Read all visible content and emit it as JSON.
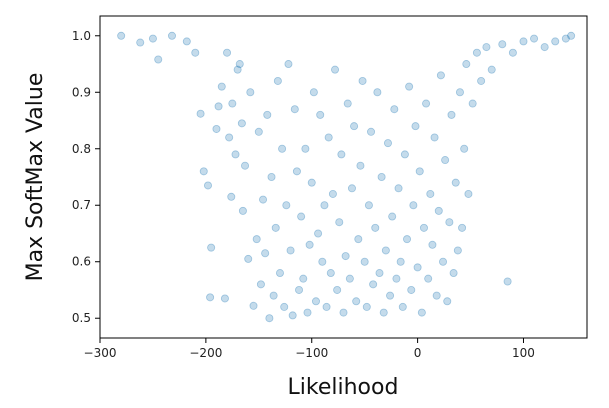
{
  "chart_data": {
    "type": "scatter",
    "title": "",
    "xlabel": "Likelihood",
    "ylabel": "Max SoftMax Value",
    "xlim": [
      -300,
      160
    ],
    "ylim": [
      0.465,
      1.035
    ],
    "xticks": [
      -300,
      -200,
      -100,
      0,
      100
    ],
    "xtick_labels": [
      "−300",
      "−200",
      "−100",
      "0",
      "100"
    ],
    "yticks": [
      0.5,
      0.6,
      0.7,
      0.8,
      0.9,
      1.0
    ],
    "ytick_labels": [
      "0.5",
      "0.6",
      "0.7",
      "0.8",
      "0.9",
      "1.0"
    ],
    "grid": false,
    "legend": "none",
    "marker_color": "#1f77b4",
    "marker_alpha": 0.12,
    "series": [
      {
        "points": [
          [
            -280,
            1.0
          ],
          [
            -262,
            0.988
          ],
          [
            -250,
            0.995
          ],
          [
            -245,
            0.958
          ],
          [
            -232,
            1.0
          ],
          [
            -218,
            0.99
          ],
          [
            -210,
            0.97
          ],
          [
            -205,
            0.862
          ],
          [
            -202,
            0.76
          ],
          [
            -198,
            0.735
          ],
          [
            -196,
            0.537
          ],
          [
            -195,
            0.625
          ],
          [
            -190,
            0.835
          ],
          [
            -188,
            0.875
          ],
          [
            -185,
            0.91
          ],
          [
            -182,
            0.535
          ],
          [
            -180,
            0.97
          ],
          [
            -178,
            0.82
          ],
          [
            -176,
            0.715
          ],
          [
            -175,
            0.88
          ],
          [
            -172,
            0.79
          ],
          [
            -170,
            0.94
          ],
          [
            -168,
            0.95
          ],
          [
            -166,
            0.845
          ],
          [
            -165,
            0.69
          ],
          [
            -163,
            0.77
          ],
          [
            -160,
            0.605
          ],
          [
            -158,
            0.9
          ],
          [
            -155,
            0.522
          ],
          [
            -152,
            0.64
          ],
          [
            -150,
            0.83
          ],
          [
            -148,
            0.56
          ],
          [
            -146,
            0.71
          ],
          [
            -144,
            0.615
          ],
          [
            -142,
            0.86
          ],
          [
            -140,
            0.5
          ],
          [
            -138,
            0.75
          ],
          [
            -136,
            0.54
          ],
          [
            -134,
            0.66
          ],
          [
            -132,
            0.92
          ],
          [
            -130,
            0.58
          ],
          [
            -128,
            0.8
          ],
          [
            -126,
            0.52
          ],
          [
            -124,
            0.7
          ],
          [
            -122,
            0.95
          ],
          [
            -120,
            0.62
          ],
          [
            -118,
            0.505
          ],
          [
            -116,
            0.87
          ],
          [
            -114,
            0.76
          ],
          [
            -112,
            0.55
          ],
          [
            -110,
            0.68
          ],
          [
            -108,
            0.57
          ],
          [
            -106,
            0.8
          ],
          [
            -104,
            0.51
          ],
          [
            -102,
            0.63
          ],
          [
            -100,
            0.74
          ],
          [
            -98,
            0.9
          ],
          [
            -96,
            0.53
          ],
          [
            -94,
            0.65
          ],
          [
            -92,
            0.86
          ],
          [
            -90,
            0.6
          ],
          [
            -88,
            0.7
          ],
          [
            -86,
            0.52
          ],
          [
            -84,
            0.82
          ],
          [
            -82,
            0.58
          ],
          [
            -80,
            0.72
          ],
          [
            -78,
            0.94
          ],
          [
            -76,
            0.55
          ],
          [
            -74,
            0.67
          ],
          [
            -72,
            0.79
          ],
          [
            -70,
            0.51
          ],
          [
            -68,
            0.61
          ],
          [
            -66,
            0.88
          ],
          [
            -64,
            0.57
          ],
          [
            -62,
            0.73
          ],
          [
            -60,
            0.84
          ],
          [
            -58,
            0.53
          ],
          [
            -56,
            0.64
          ],
          [
            -54,
            0.77
          ],
          [
            -52,
            0.92
          ],
          [
            -50,
            0.6
          ],
          [
            -48,
            0.52
          ],
          [
            -46,
            0.7
          ],
          [
            -44,
            0.83
          ],
          [
            -42,
            0.56
          ],
          [
            -40,
            0.66
          ],
          [
            -38,
            0.9
          ],
          [
            -36,
            0.58
          ],
          [
            -34,
            0.75
          ],
          [
            -32,
            0.51
          ],
          [
            -30,
            0.62
          ],
          [
            -28,
            0.81
          ],
          [
            -26,
            0.54
          ],
          [
            -24,
            0.68
          ],
          [
            -22,
            0.87
          ],
          [
            -20,
            0.57
          ],
          [
            -18,
            0.73
          ],
          [
            -16,
            0.6
          ],
          [
            -14,
            0.52
          ],
          [
            -12,
            0.79
          ],
          [
            -10,
            0.64
          ],
          [
            -8,
            0.91
          ],
          [
            -6,
            0.55
          ],
          [
            -4,
            0.7
          ],
          [
            -2,
            0.84
          ],
          [
            0,
            0.59
          ],
          [
            2,
            0.76
          ],
          [
            4,
            0.51
          ],
          [
            6,
            0.66
          ],
          [
            8,
            0.88
          ],
          [
            10,
            0.57
          ],
          [
            12,
            0.72
          ],
          [
            14,
            0.63
          ],
          [
            16,
            0.82
          ],
          [
            18,
            0.54
          ],
          [
            20,
            0.69
          ],
          [
            22,
            0.93
          ],
          [
            24,
            0.6
          ],
          [
            26,
            0.78
          ],
          [
            28,
            0.53
          ],
          [
            30,
            0.67
          ],
          [
            32,
            0.86
          ],
          [
            34,
            0.58
          ],
          [
            36,
            0.74
          ],
          [
            38,
            0.62
          ],
          [
            40,
            0.9
          ],
          [
            42,
            0.66
          ],
          [
            44,
            0.8
          ],
          [
            46,
            0.95
          ],
          [
            48,
            0.72
          ],
          [
            52,
            0.88
          ],
          [
            56,
            0.97
          ],
          [
            60,
            0.92
          ],
          [
            65,
            0.98
          ],
          [
            70,
            0.94
          ],
          [
            80,
            0.985
          ],
          [
            85,
            0.565
          ],
          [
            90,
            0.97
          ],
          [
            100,
            0.99
          ],
          [
            110,
            0.995
          ],
          [
            120,
            0.98
          ],
          [
            130,
            0.99
          ],
          [
            140,
            0.995
          ],
          [
            145,
            1.0
          ]
        ]
      }
    ]
  }
}
